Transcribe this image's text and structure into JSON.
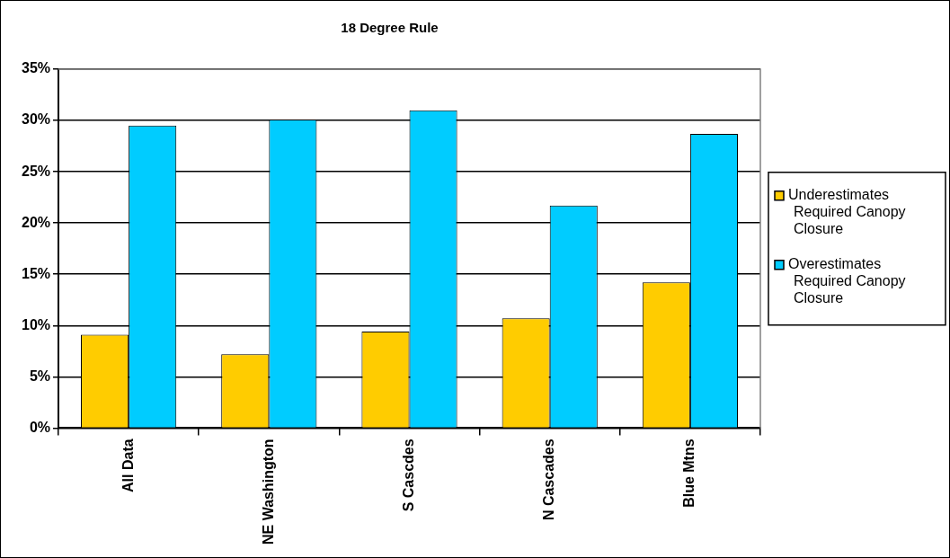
{
  "chart_data": {
    "type": "bar",
    "title": "18 Degree Rule",
    "categories": [
      "All Data",
      "NE Washington",
      "S Cascdes",
      "N Cascades",
      "Blue Mtns"
    ],
    "series": [
      {
        "name": "Underestimates Required Canopy Closure",
        "color": "#ffcc00",
        "values": [
          9.1,
          7.2,
          9.4,
          10.7,
          14.2
        ]
      },
      {
        "name": "Overestimates Required Canopy Closure",
        "color": "#00ccff",
        "values": [
          29.5,
          30.1,
          31.0,
          21.7,
          28.7
        ]
      }
    ],
    "ylim": [
      0,
      35
    ],
    "yticks": [
      {
        "value": 0,
        "label": "0%"
      },
      {
        "value": 5,
        "label": "5%"
      },
      {
        "value": 10,
        "label": "10%"
      },
      {
        "value": 15,
        "label": "15%"
      },
      {
        "value": 20,
        "label": "20%"
      },
      {
        "value": 25,
        "label": "25%"
      },
      {
        "value": 30,
        "label": "30%"
      },
      {
        "value": 35,
        "label": "35%"
      }
    ],
    "grid": "y",
    "legend": "right"
  }
}
